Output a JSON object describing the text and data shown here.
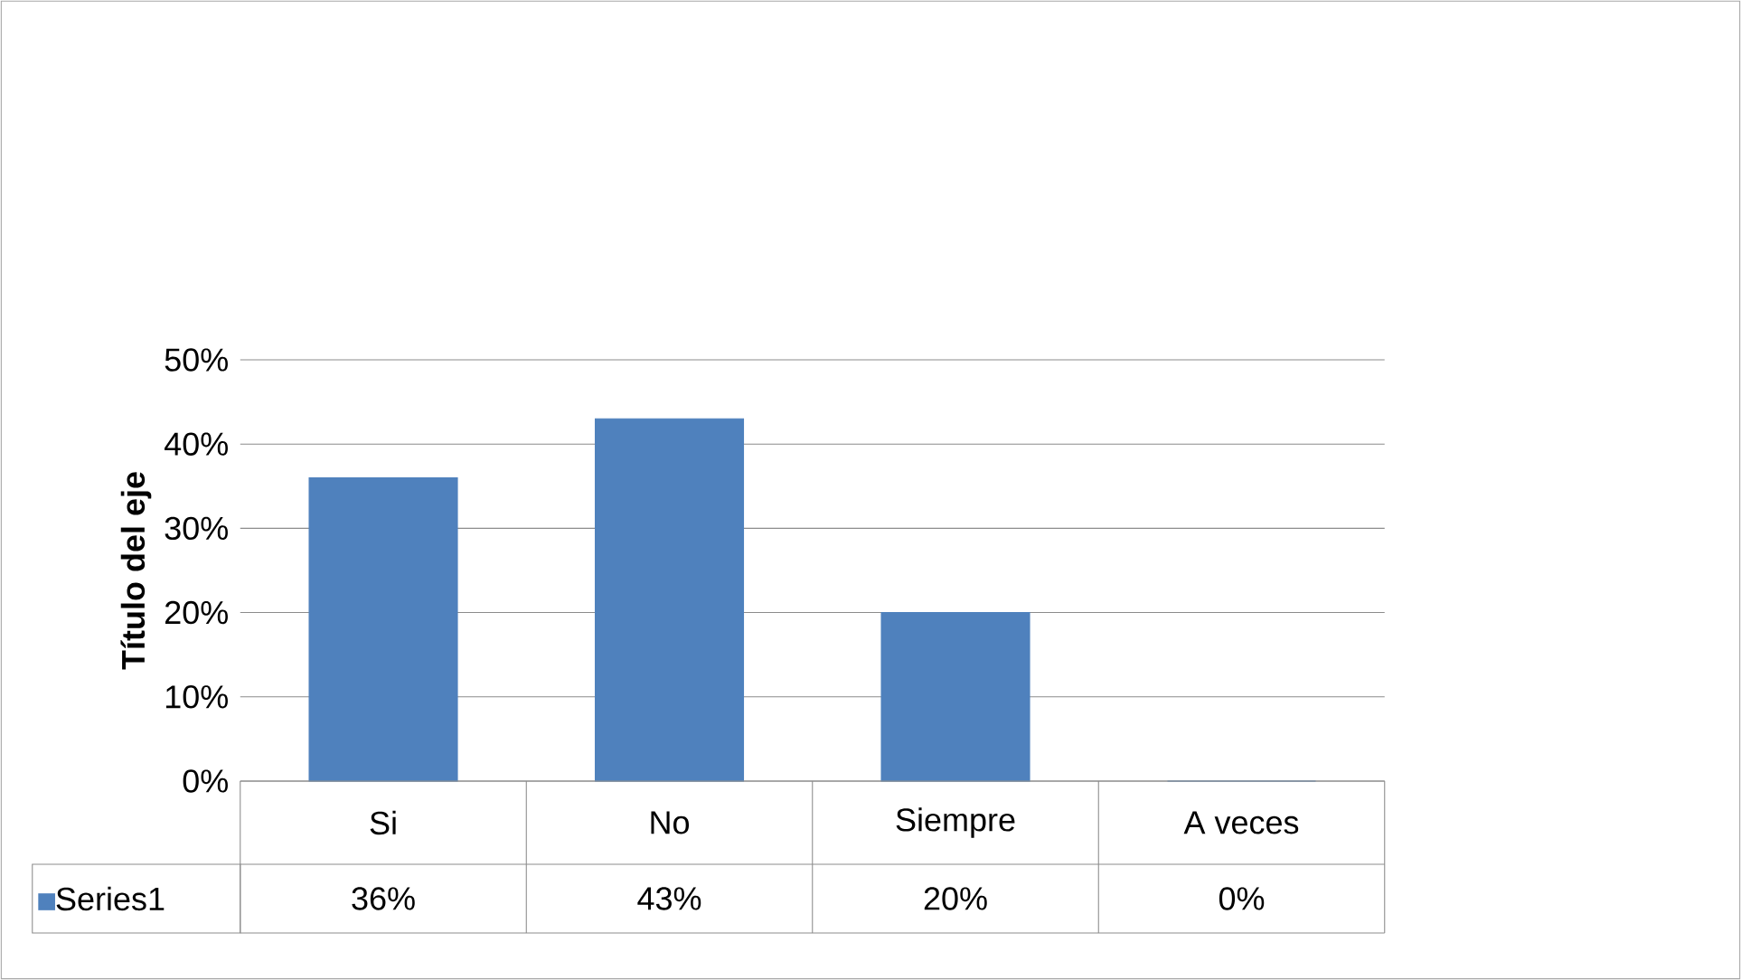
{
  "chart_data": {
    "type": "bar",
    "ylabel": "Título del eje",
    "categories": [
      "Si",
      "No",
      "Siempre",
      "A veces"
    ],
    "series": [
      {
        "name": "Series1",
        "color": "#4f81bd",
        "values": [
          36,
          43,
          20,
          0
        ]
      }
    ],
    "value_labels": [
      "36%",
      "43%",
      "20%",
      "0%"
    ],
    "ylim": [
      0,
      50
    ],
    "yticks": [
      {
        "value": 0,
        "label": "0%"
      },
      {
        "value": 10,
        "label": "10%"
      },
      {
        "value": 20,
        "label": "20%"
      },
      {
        "value": 30,
        "label": "30%"
      },
      {
        "value": 40,
        "label": "40%"
      },
      {
        "value": 50,
        "label": "50%"
      }
    ],
    "grid": "y",
    "legend": "bottom"
  }
}
